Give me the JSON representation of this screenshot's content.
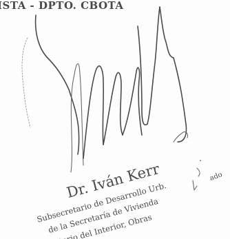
{
  "document": {
    "header_fragment": "ISTA - DPTO. CBOTA",
    "stamp": {
      "name": "Dr. Iván Kerr",
      "lines": [
        "Subsecretario de Desarrollo Urb.",
        "de la Secretaría de Vivienda",
        "nisterio del Interior, Obras"
      ]
    },
    "margin_fragments": [
      ".",
      "ado"
    ]
  }
}
